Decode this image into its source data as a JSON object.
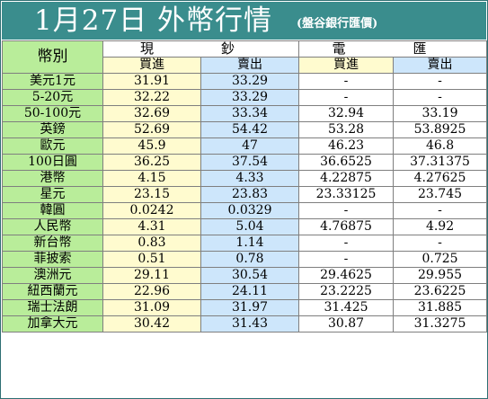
{
  "title": {
    "main": "1月27日 外幣行情",
    "sub": "(盤谷銀行匯價)"
  },
  "header": {
    "currency_label": "幣別",
    "cash_group": "現　鈔",
    "transfer_group": "電　匯",
    "cash_buy": "買進",
    "cash_sell": "賣出",
    "transfer_buy": "買進",
    "transfer_sell": "賣出"
  },
  "rows": [
    {
      "name": "美元1元",
      "cash_buy": "31.91",
      "cash_sell": "33.29",
      "tt_buy": "-",
      "tt_sell": "-"
    },
    {
      "name": "5-20元",
      "cash_buy": "32.22",
      "cash_sell": "33.29",
      "tt_buy": "-",
      "tt_sell": "-"
    },
    {
      "name": "50-100元",
      "cash_buy": "32.69",
      "cash_sell": "33.34",
      "tt_buy": "32.94",
      "tt_sell": "33.19"
    },
    {
      "name": "英鎊",
      "cash_buy": "52.69",
      "cash_sell": "54.42",
      "tt_buy": "53.28",
      "tt_sell": "53.8925"
    },
    {
      "name": "歐元",
      "cash_buy": "45.9",
      "cash_sell": "47",
      "tt_buy": "46.23",
      "tt_sell": "46.8"
    },
    {
      "name": "100日圓",
      "cash_buy": "36.25",
      "cash_sell": "37.54",
      "tt_buy": "36.6525",
      "tt_sell": "37.31375"
    },
    {
      "name": "港幣",
      "cash_buy": "4.15",
      "cash_sell": "4.33",
      "tt_buy": "4.22875",
      "tt_sell": "4.27625"
    },
    {
      "name": "星元",
      "cash_buy": "23.15",
      "cash_sell": "23.83",
      "tt_buy": "23.33125",
      "tt_sell": "23.745"
    },
    {
      "name": "韓圓",
      "cash_buy": "0.0242",
      "cash_sell": "0.0329",
      "tt_buy": "-",
      "tt_sell": "-"
    },
    {
      "name": "人民幣",
      "cash_buy": "4.31",
      "cash_sell": "5.04",
      "tt_buy": "4.76875",
      "tt_sell": "4.92"
    },
    {
      "name": "新台幣",
      "cash_buy": "0.83",
      "cash_sell": "1.14",
      "tt_buy": "-",
      "tt_sell": "-"
    },
    {
      "name": "菲披索",
      "cash_buy": "0.51",
      "cash_sell": "0.78",
      "tt_buy": "-",
      "tt_sell": "0.725"
    },
    {
      "name": "澳洲元",
      "cash_buy": "29.11",
      "cash_sell": "30.54",
      "tt_buy": "29.4625",
      "tt_sell": "29.955"
    },
    {
      "name": "紐西蘭元",
      "cash_buy": "22.96",
      "cash_sell": "24.11",
      "tt_buy": "23.2225",
      "tt_sell": "23.6225"
    },
    {
      "name": "瑞士法朗",
      "cash_buy": "31.09",
      "cash_sell": "31.97",
      "tt_buy": "31.425",
      "tt_sell": "31.885"
    },
    {
      "name": "加拿大元",
      "cash_buy": "30.42",
      "cash_sell": "31.43",
      "tt_buy": "30.87",
      "tt_sell": "31.3275"
    }
  ],
  "colors": {
    "title_bar": "#3a8d8d",
    "name_column": "#b9ed9a",
    "buy_column": "#fffbcf",
    "sell_column": "#cde6fb"
  }
}
